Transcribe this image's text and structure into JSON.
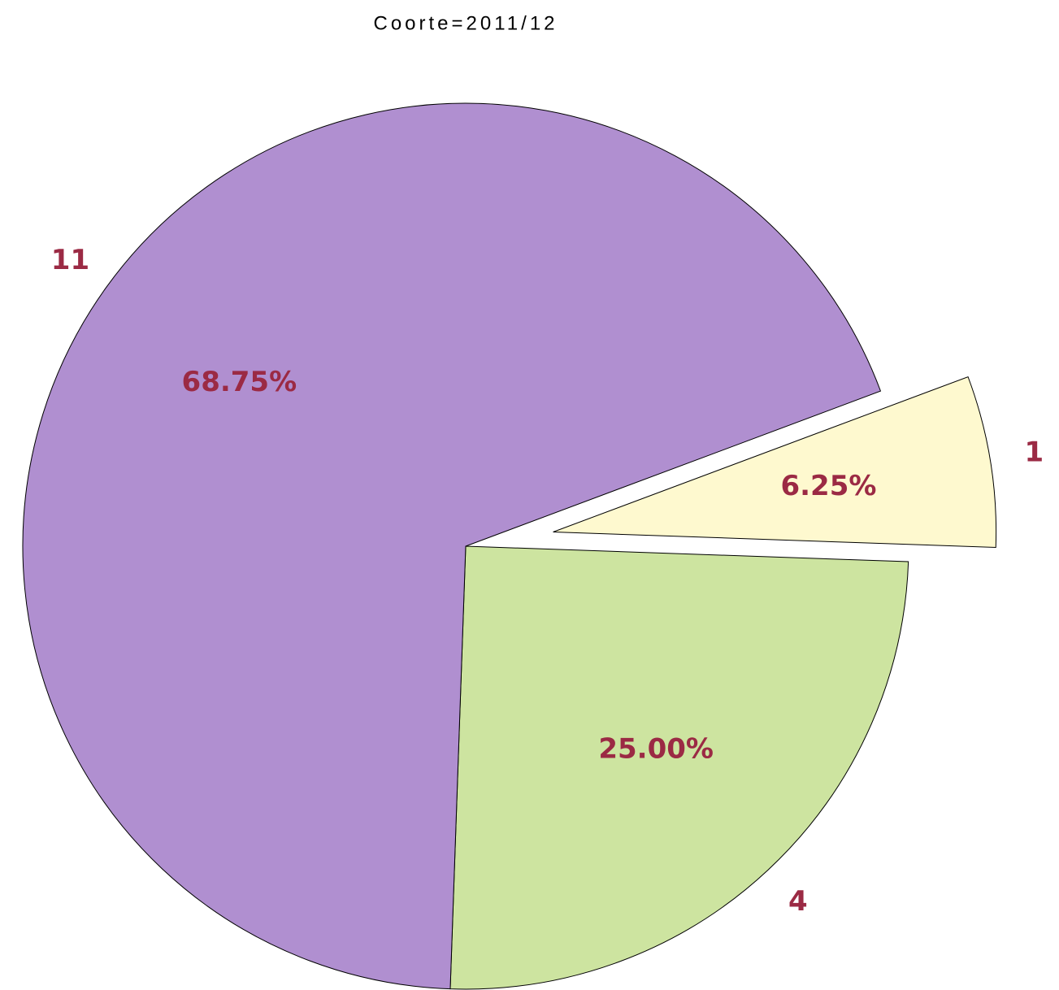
{
  "chart_data": {
    "type": "pie",
    "title": "Coorte=2011/12",
    "categories": [
      "1",
      "4",
      "11"
    ],
    "values": [
      6.25,
      25,
      68.75
    ],
    "value_labels": [
      "6.25%",
      "25.00%",
      "68.75%"
    ],
    "colors": [
      "#fef9cf",
      "#cde4a0",
      "#b08fd0"
    ],
    "explode": [
      0.2,
      0,
      0
    ]
  }
}
